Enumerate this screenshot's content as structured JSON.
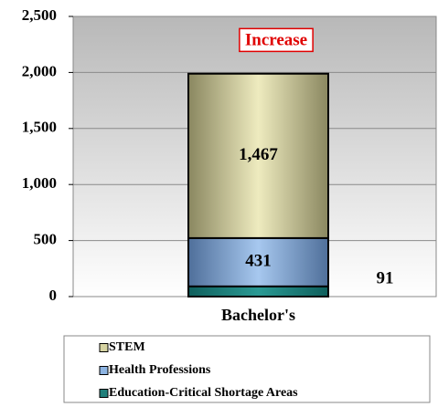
{
  "chart_data": {
    "type": "stacked-bar",
    "annotation": "Increase",
    "categories": [
      "Bachelor's"
    ],
    "series": [
      {
        "name": "Education-Critical Shortage Areas",
        "color": "#1f7f7a",
        "values": [
          91
        ]
      },
      {
        "name": "Health Professions",
        "color": "#8db4e2",
        "values": [
          431
        ]
      },
      {
        "name": "STEM",
        "color": "#d6d3a2",
        "values": [
          1467
        ],
        "value_labels": [
          "1,467"
        ]
      }
    ],
    "ylim": [
      0,
      2500
    ],
    "yticks": [
      0,
      500,
      {
        "value": 1000,
        "label": "1,000"
      },
      {
        "value": 1500,
        "label": "1,500"
      },
      {
        "value": 2000,
        "label": "2,000"
      },
      {
        "value": 2500,
        "label": "2,500"
      }
    ],
    "grid": true
  }
}
